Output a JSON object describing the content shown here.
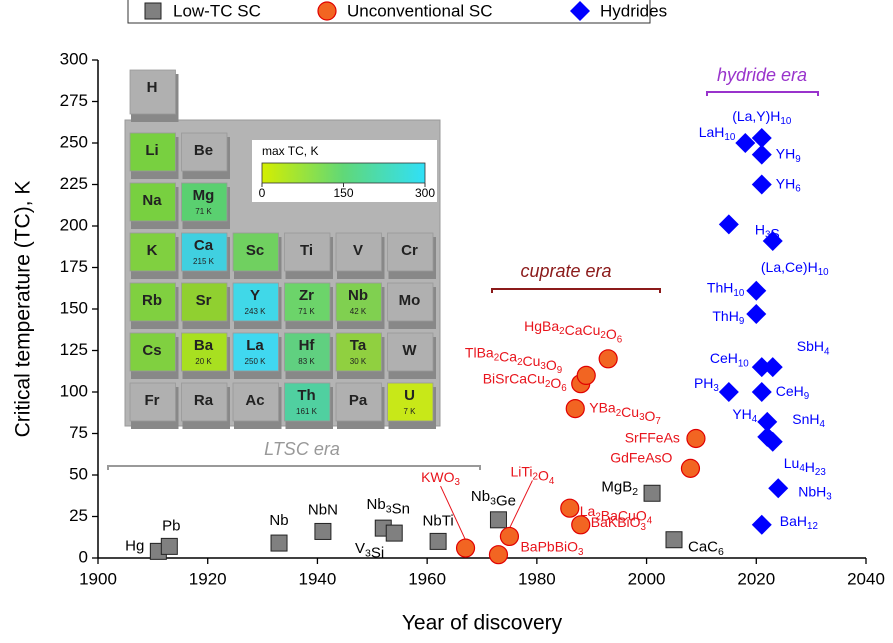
{
  "chart_data": {
    "type": "scatter",
    "x_label": "Year of discovery",
    "y_label": "Critical temperature (TC), K",
    "xlim": [
      1900,
      2040
    ],
    "xticks": [
      1900,
      1920,
      1940,
      1960,
      1980,
      2000,
      2020,
      2040
    ],
    "ylim": [
      0,
      300
    ],
    "yticks": [
      0,
      25,
      50,
      75,
      100,
      125,
      150,
      175,
      200,
      225,
      250,
      275,
      300
    ],
    "series": [
      {
        "name": "Low-TC SC",
        "color": "#808080",
        "marker": "square",
        "x": [
          1911,
          1913,
          1933,
          1941,
          1952,
          1954,
          1962,
          1973,
          2001,
          2005
        ],
        "values": [
          4,
          7,
          9,
          16,
          18,
          15,
          10,
          23,
          39,
          11
        ],
        "labels": [
          "Hg",
          "Pb",
          "Nb",
          "NbN",
          "Nb3Sn",
          "V3Si",
          "NbTi",
          "Nb3Ge",
          "MgB2",
          "CaC6"
        ]
      },
      {
        "name": "Unconventional SC",
        "color": "#f26522",
        "marker": "circle",
        "x": [
          1967,
          1973,
          1975,
          1986,
          1988,
          1987,
          1988,
          1989,
          1993,
          2009,
          2008
        ],
        "values": [
          6,
          2,
          13,
          30,
          20,
          90,
          105,
          110,
          120,
          72,
          54
        ],
        "labels": [
          "KWO3",
          "BaPbBiO3",
          "LiTi2O4",
          "La2BaCuO4",
          "BaKBiO3",
          "YBa2Cu3O7",
          "BiSrCaCu2O6",
          "TlBa2Ca2Cu3O9",
          "HgBa2CaCu2O6",
          "SrFFeAs",
          "GdFeAsO"
        ]
      },
      {
        "name": "Hydrides",
        "color": "#0000ff",
        "marker": "diamond",
        "x": [
          2018,
          2021,
          2021,
          2021,
          2015,
          2023,
          2020,
          2020,
          2021,
          2023,
          2015,
          2021,
          2022,
          2022,
          2023,
          2024,
          2021
        ],
        "values": [
          250,
          253,
          243,
          225,
          201,
          191,
          161,
          147,
          115,
          115,
          100,
          100,
          82,
          73,
          70,
          42,
          20
        ],
        "labels": [
          "LaH10",
          "(La,Y)H10",
          "YH9",
          "YH6",
          "H3S",
          "(La,Ce)H10",
          "ThH10",
          "ThH9",
          "CeH10",
          "SbH4",
          "PH3",
          "CeH9",
          "YH4",
          "SnH4",
          "Lu4H23",
          "NbH3",
          "BaH12"
        ]
      }
    ],
    "annotations": [
      {
        "text": "hydride era",
        "color": "#9933cc"
      },
      {
        "text": "cuprate era",
        "color": "#8b1a1a"
      },
      {
        "text": "LTSC era",
        "color": "#999999"
      }
    ]
  },
  "inset": {
    "colorbar_label": "max TC, K",
    "colorbar_ticks": [
      0,
      150,
      300
    ],
    "colorbar_colors": [
      "#d4ee00",
      "#60d878",
      "#30e0f8"
    ],
    "rows": [
      [
        {
          "symbol": "H",
          "color": "#b0b0b0"
        }
      ],
      [
        {
          "symbol": "Li",
          "color": "#78d040"
        },
        {
          "symbol": "Be",
          "color": "#b0b0b0"
        }
      ],
      [
        {
          "symbol": "Na",
          "color": "#78d040"
        },
        {
          "symbol": "Mg",
          "tc_label": "71 K",
          "color": "#5ad070"
        }
      ],
      [
        {
          "symbol": "K",
          "color": "#80d040"
        },
        {
          "symbol": "Ca",
          "tc_label": "215 K",
          "color": "#40d0e0"
        },
        {
          "symbol": "Sc",
          "color": "#70d060"
        },
        {
          "symbol": "Ti",
          "color": "#b0b0b0"
        },
        {
          "symbol": "V",
          "color": "#b0b0b0"
        },
        {
          "symbol": "Cr",
          "color": "#b0b0b0"
        }
      ],
      [
        {
          "symbol": "Rb",
          "color": "#80d040"
        },
        {
          "symbol": "Sr",
          "color": "#90d030"
        },
        {
          "symbol": "Y",
          "tc_label": "243 K",
          "color": "#40d8e8"
        },
        {
          "symbol": "Zr",
          "tc_label": "71 K",
          "color": "#6cd46a"
        },
        {
          "symbol": "Nb",
          "tc_label": "42 K",
          "color": "#80d050"
        },
        {
          "symbol": "Mo",
          "color": "#b0b0b0"
        }
      ],
      [
        {
          "symbol": "Cs",
          "color": "#80d040"
        },
        {
          "symbol": "Ba",
          "tc_label": "20 K",
          "color": "#a8e020"
        },
        {
          "symbol": "La",
          "tc_label": "250 K",
          "color": "#40d8f0"
        },
        {
          "symbol": "Hf",
          "tc_label": "83 K",
          "color": "#60d080"
        },
        {
          "symbol": "Ta",
          "tc_label": "30 K",
          "color": "#90d040"
        },
        {
          "symbol": "W",
          "color": "#b0b0b0"
        }
      ],
      [
        {
          "symbol": "Fr",
          "color": "#b0b0b0"
        },
        {
          "symbol": "Ra",
          "color": "#b0b0b0"
        },
        {
          "symbol": "Ac",
          "color": "#b0b0b0"
        },
        {
          "symbol": "Th",
          "tc_label": "161 K",
          "color": "#50d0a0"
        },
        {
          "symbol": "Pa",
          "color": "#b0b0b0"
        },
        {
          "symbol": "U",
          "tc_label": "7 K",
          "color": "#c8e818"
        }
      ]
    ]
  }
}
